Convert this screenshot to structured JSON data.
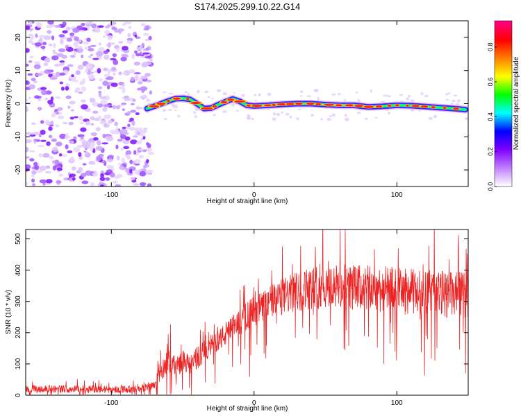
{
  "figure_title": "S174.2025.299.10.22.G14",
  "chart_data": [
    {
      "type": "heatmap",
      "title": "S174.2025.299.10.22.G14",
      "xlabel": "Height of straight line (km)",
      "ylabel": "Frequency (Hz)",
      "xlim": [
        -160,
        150
      ],
      "ylim": [
        -25,
        25
      ],
      "x_ticks": [
        -100,
        0,
        100
      ],
      "y_ticks": [
        -20,
        -10,
        0,
        10,
        20
      ],
      "noise_region_x": [
        -160,
        -75
      ],
      "ridge_x": [
        -75,
        -70,
        -65,
        -60,
        -55,
        -50,
        -45,
        -40,
        -35,
        -30,
        -25,
        -20,
        -15,
        -10,
        -5,
        0,
        10,
        20,
        30,
        40,
        50,
        60,
        70,
        80,
        90,
        100,
        110,
        120,
        130,
        140,
        148
      ],
      "ridge_freq": [
        -1.5,
        -0.8,
        0.0,
        0.8,
        1.5,
        1.6,
        1.3,
        0.0,
        -1.5,
        -1.3,
        -0.3,
        0.6,
        1.4,
        0.7,
        -0.5,
        -0.7,
        -0.5,
        -0.2,
        0.0,
        0.0,
        -0.3,
        -0.5,
        -0.5,
        -1.0,
        -0.8,
        -0.5,
        -0.6,
        -0.9,
        -1.2,
        -1.5,
        -1.8
      ],
      "colorbar": {
        "label": "Normalized spectral amplitude",
        "range": [
          0,
          0.95
        ],
        "ticks": [
          "0.0",
          "0.2",
          "0.4",
          "0.6",
          "0.8"
        ],
        "tick_values": [
          0,
          0.2,
          0.4,
          0.6,
          0.8
        ],
        "colors": [
          "#ffffff",
          "#c080ff",
          "#8000ff",
          "#0000ff",
          "#00ffff",
          "#00ff00",
          "#ffff00",
          "#ff8000",
          "#ff0000",
          "#ff0080"
        ]
      }
    },
    {
      "type": "line",
      "xlabel": "Height of straight line (km)",
      "ylabel": "SNR (10 * v/v)",
      "xlim": [
        -160,
        150
      ],
      "ylim": [
        0,
        530
      ],
      "x_ticks": [
        -100,
        0,
        100
      ],
      "y_ticks": [
        0,
        100,
        200,
        300,
        400,
        500
      ],
      "series": [
        {
          "name": "SNR",
          "color": "#ee2222",
          "x": [
            -160,
            -140,
            -120,
            -100,
            -80,
            -70,
            -65,
            -62,
            -58,
            -55,
            -50,
            -45,
            -40,
            -35,
            -30,
            -25,
            -20,
            -15,
            -10,
            -5,
            0,
            5,
            10,
            15,
            20,
            30,
            40,
            50,
            60,
            70,
            80,
            90,
            100,
            110,
            120,
            130,
            140,
            150
          ],
          "mean": [
            20,
            20,
            20,
            18,
            20,
            35,
            70,
            100,
            110,
            90,
            110,
            95,
            120,
            140,
            160,
            175,
            195,
            215,
            235,
            255,
            270,
            280,
            295,
            305,
            315,
            330,
            345,
            350,
            345,
            345,
            340,
            340,
            335,
            330,
            330,
            325,
            320,
            320
          ],
          "spread": [
            12,
            12,
            12,
            12,
            12,
            15,
            30,
            35,
            40,
            35,
            35,
            30,
            35,
            35,
            35,
            35,
            40,
            40,
            45,
            45,
            50,
            50,
            55,
            55,
            60,
            65,
            70,
            75,
            75,
            75,
            75,
            75,
            75,
            75,
            75,
            75,
            75,
            75
          ]
        }
      ]
    }
  ]
}
